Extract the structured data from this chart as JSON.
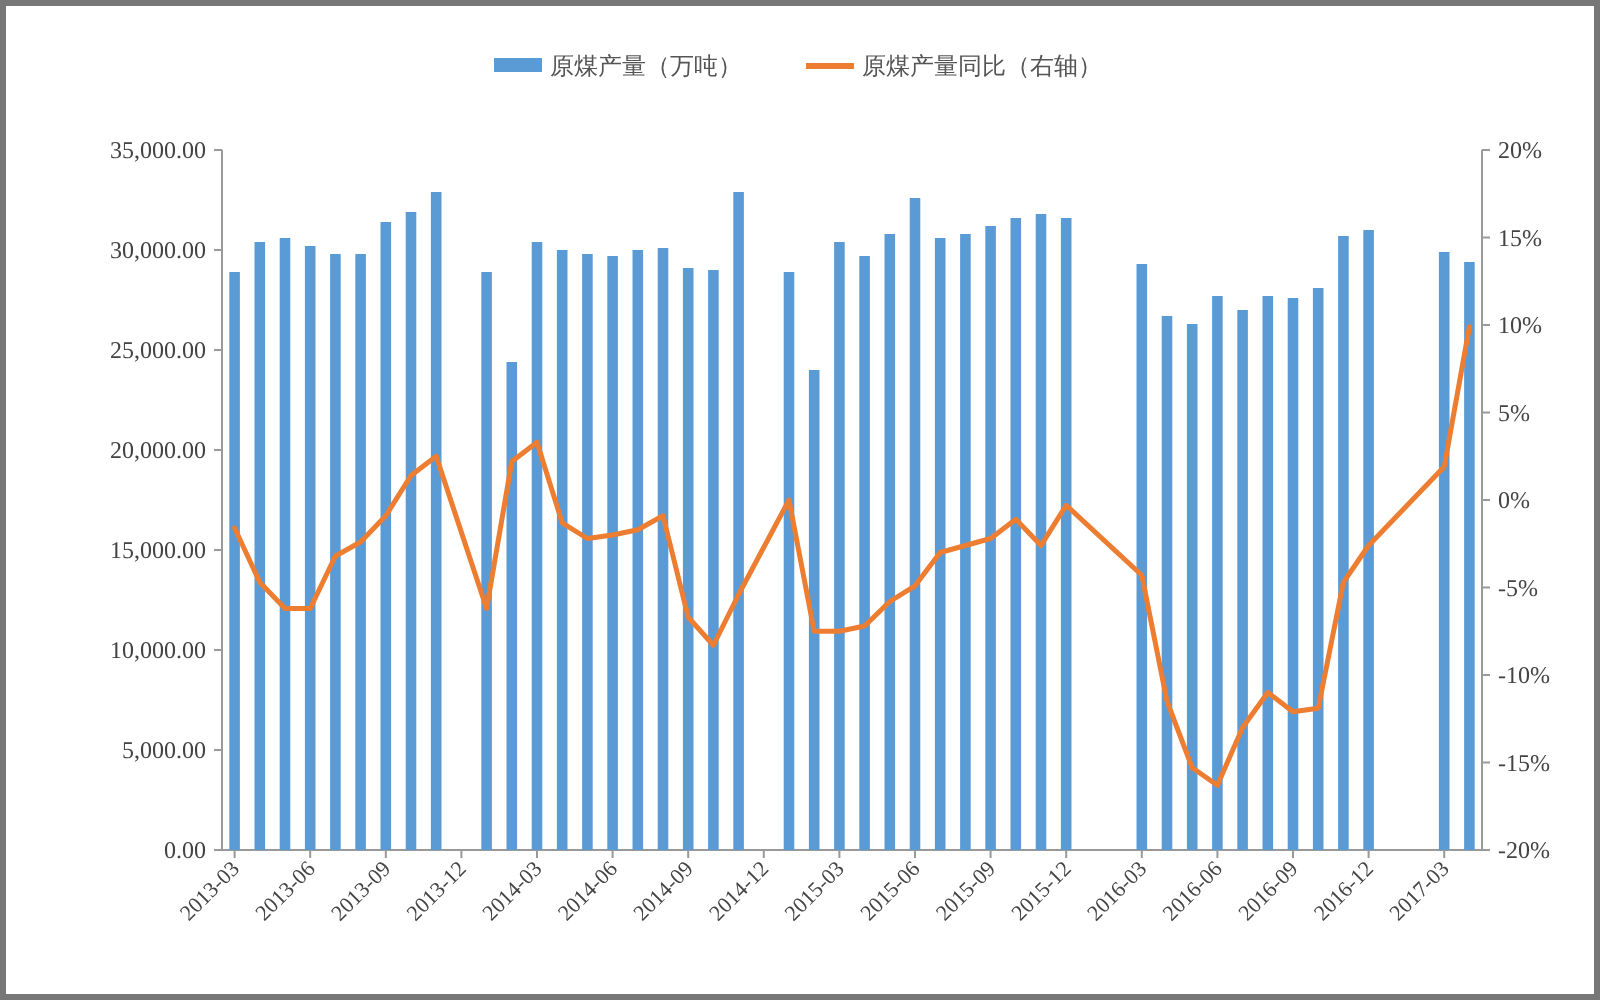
{
  "chart_data": {
    "type": "bar",
    "categories": [
      "2013-03",
      null,
      null,
      "2013-06",
      null,
      null,
      "2013-09",
      null,
      null,
      "2013-12",
      null,
      null,
      "2014-03",
      null,
      null,
      "2014-06",
      null,
      null,
      "2014-09",
      null,
      null,
      "2014-12",
      null,
      null,
      "2015-03",
      null,
      null,
      "2015-06",
      null,
      null,
      "2015-09",
      null,
      null,
      "2015-12",
      null,
      null,
      "2016-03",
      null,
      null,
      "2016-06",
      null,
      null,
      "2016-09",
      null,
      null,
      "2016-12",
      null,
      null,
      "2017-03",
      null
    ],
    "series": [
      {
        "name": "原煤产量（万吨）",
        "color": "#5b9bd5",
        "values": [
          28900,
          30400,
          30600,
          30200,
          29800,
          29800,
          31400,
          31900,
          32900,
          null,
          28900,
          24400,
          30400,
          30000,
          29800,
          29700,
          30000,
          30100,
          29100,
          29000,
          32900,
          null,
          28900,
          24000,
          30400,
          29700,
          30800,
          32600,
          30600,
          30800,
          31200,
          31600,
          31800,
          31600,
          null,
          null,
          29300,
          26700,
          26300,
          27700,
          27000,
          27700,
          27600,
          28100,
          30700,
          31000,
          null,
          null,
          29900,
          29400
        ]
      },
      {
        "name": "原煤产量同比（右轴）",
        "type": "line",
        "axis": "y2",
        "color": "#ed7d31",
        "values": [
          -1.6,
          -4.7,
          -6.2,
          -6.2,
          -3.2,
          -2.4,
          -0.9,
          1.4,
          2.5,
          null,
          -6.2,
          2.2,
          3.3,
          -1.3,
          -2.2,
          -2.0,
          -1.7,
          -0.9,
          -6.7,
          -8.3,
          -5.4,
          null,
          0,
          -7.5,
          -7.5,
          -7.2,
          -5.8,
          -4.9,
          -3.0,
          -2.6,
          -2.2,
          -1.1,
          -2.6,
          -0.3,
          null,
          null,
          -4.3,
          -11.5,
          -15.3,
          -16.3,
          -13.0,
          -11.0,
          -12.1,
          -11.9,
          -4.7,
          -2.6,
          null,
          null,
          1.9,
          9.9
        ]
      }
    ],
    "ylim": [
      0,
      35000
    ],
    "yticks": [
      {
        "value": 0,
        "label": "0.00"
      },
      {
        "value": 5000,
        "label": "5,000.00"
      },
      {
        "value": 10000,
        "label": "10,000.00"
      },
      {
        "value": 15000,
        "label": "15,000.00"
      },
      {
        "value": 20000,
        "label": "20,000.00"
      },
      {
        "value": 25000,
        "label": "25,000.00"
      },
      {
        "value": 30000,
        "label": "30,000.00"
      },
      {
        "value": 35000,
        "label": "35,000.00"
      }
    ],
    "y2lim": [
      -20,
      20
    ],
    "y2ticks": [
      {
        "value": -20,
        "label": "-20%"
      },
      {
        "value": -15,
        "label": "-15%"
      },
      {
        "value": -10,
        "label": "-10%"
      },
      {
        "value": -5,
        "label": "-5%"
      },
      {
        "value": 0,
        "label": "0%"
      },
      {
        "value": 5,
        "label": "5%"
      },
      {
        "value": 10,
        "label": "10%"
      },
      {
        "value": 15,
        "label": "15%"
      },
      {
        "value": 20,
        "label": "20%"
      }
    ],
    "legend": "top"
  }
}
